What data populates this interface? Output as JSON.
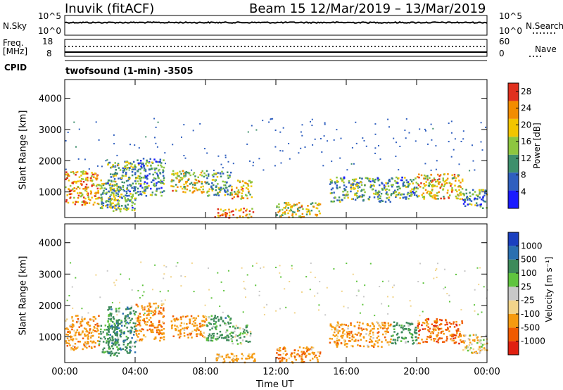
{
  "header": {
    "station": "Inuvik (fitACF)",
    "beam_date": "Beam 15  12/Mar/2019 – 13/Mar/2019",
    "cpid_label": "CPID",
    "mode": "twofsound (1-min) -3505"
  },
  "strip_noise": {
    "left_label": "N.Sky",
    "right_label": "N.Search",
    "left_ticks": [
      "10^5",
      "10^0"
    ],
    "right_ticks": [
      "10^5",
      "10^0"
    ]
  },
  "strip_freq": {
    "left_label_1": "Freq.",
    "left_label_2": "[MHz]",
    "right_label": "Nave",
    "left_ticks": [
      "18",
      "8"
    ],
    "right_ticks": [
      "60",
      "0"
    ]
  },
  "chart_data": [
    {
      "type": "heatmap",
      "panel": "power",
      "ylabel": "Slant Range [km]",
      "xlabel": "",
      "ylim": [
        180,
        4600
      ],
      "y_ticks": [
        "1000",
        "2000",
        "3000",
        "4000"
      ],
      "x_ticks": [
        "00:00",
        "04:00",
        "08:00",
        "12:00",
        "16:00",
        "20:00",
        "00:00"
      ],
      "colorbar": {
        "label": "Power [dB]",
        "ticks": [
          "4",
          "8",
          "12",
          "16",
          "20",
          "24",
          "28"
        ],
        "range": [
          0,
          30
        ],
        "colors": [
          "#1a1aff",
          "#2f5fbf",
          "#3e8f6c",
          "#8dc63f",
          "#f2c500",
          "#f28c00",
          "#e0301e"
        ]
      },
      "regions": [
        {
          "t": [
            0.0,
            1.9
          ],
          "r": [
            600,
            1700
          ],
          "value": 22
        },
        {
          "t": [
            1.9,
            3.0
          ],
          "r": [
            500,
            1400
          ],
          "value": 14
        },
        {
          "t": [
            2.4,
            4.0
          ],
          "r": [
            400,
            2000
          ],
          "value": 12
        },
        {
          "t": [
            4.0,
            5.6
          ],
          "r": [
            900,
            2100
          ],
          "value": 10
        },
        {
          "t": [
            6.0,
            8.0
          ],
          "r": [
            1000,
            1700
          ],
          "value": 18
        },
        {
          "t": [
            8.0,
            9.4
          ],
          "r": [
            900,
            1700
          ],
          "value": 12
        },
        {
          "t": [
            9.4,
            10.6
          ],
          "r": [
            800,
            1400
          ],
          "value": 20
        },
        {
          "t": [
            8.5,
            10.8
          ],
          "r": [
            200,
            500
          ],
          "value": 24
        },
        {
          "t": [
            12.0,
            14.5
          ],
          "r": [
            200,
            700
          ],
          "value": 18
        },
        {
          "t": [
            15.0,
            18.5
          ],
          "r": [
            700,
            1500
          ],
          "value": 12
        },
        {
          "t": [
            18.5,
            20.0
          ],
          "r": [
            800,
            1500
          ],
          "value": 10
        },
        {
          "t": [
            20.0,
            22.6
          ],
          "r": [
            800,
            1600
          ],
          "value": 20
        },
        {
          "t": [
            22.6,
            24.0
          ],
          "r": [
            500,
            1100
          ],
          "value": 10
        }
      ]
    },
    {
      "type": "heatmap",
      "panel": "velocity",
      "ylabel": "Slant Range [km]",
      "xlabel": "Time UT",
      "ylim": [
        180,
        4600
      ],
      "y_ticks": [
        "1000",
        "2000",
        "3000",
        "4000"
      ],
      "x_ticks": [
        "00:00",
        "04:00",
        "08:00",
        "12:00",
        "16:00",
        "20:00",
        "00:00"
      ],
      "colorbar": {
        "label": "Velocity [m s⁻¹]",
        "ticks": [
          "-1000",
          "-500",
          "-100",
          "-25",
          "25",
          "100",
          "500",
          "1000"
        ],
        "colors": [
          "#e02010",
          "#f05a00",
          "#f59a10",
          "#f2d48a",
          "#c8c8c8",
          "#5fc43e",
          "#3d8a5a",
          "#2a6fb0",
          "#1a3fbf"
        ]
      },
      "regions": [
        {
          "t": [
            0.0,
            1.9
          ],
          "r": [
            600,
            1700
          ],
          "value": -300
        },
        {
          "t": [
            1.9,
            3.0
          ],
          "r": [
            500,
            1400
          ],
          "value": 200
        },
        {
          "t": [
            2.4,
            4.0
          ],
          "r": [
            400,
            2000
          ],
          "value": 300
        },
        {
          "t": [
            4.0,
            5.6
          ],
          "r": [
            900,
            2100
          ],
          "value": -400
        },
        {
          "t": [
            6.0,
            8.0
          ],
          "r": [
            1000,
            1700
          ],
          "value": -300
        },
        {
          "t": [
            8.0,
            9.4
          ],
          "r": [
            900,
            1700
          ],
          "value": 250
        },
        {
          "t": [
            9.4,
            10.6
          ],
          "r": [
            800,
            1400
          ],
          "value": 120
        },
        {
          "t": [
            8.5,
            10.8
          ],
          "r": [
            200,
            500
          ],
          "value": -200
        },
        {
          "t": [
            12.0,
            14.5
          ],
          "r": [
            200,
            700
          ],
          "value": -400
        },
        {
          "t": [
            15.0,
            18.5
          ],
          "r": [
            700,
            1500
          ],
          "value": -300
        },
        {
          "t": [
            18.5,
            20.0
          ],
          "r": [
            800,
            1500
          ],
          "value": 200
        },
        {
          "t": [
            20.0,
            22.6
          ],
          "r": [
            800,
            1600
          ],
          "value": -600
        },
        {
          "t": [
            22.6,
            24.0
          ],
          "r": [
            500,
            1100
          ],
          "value": -100
        }
      ]
    }
  ]
}
